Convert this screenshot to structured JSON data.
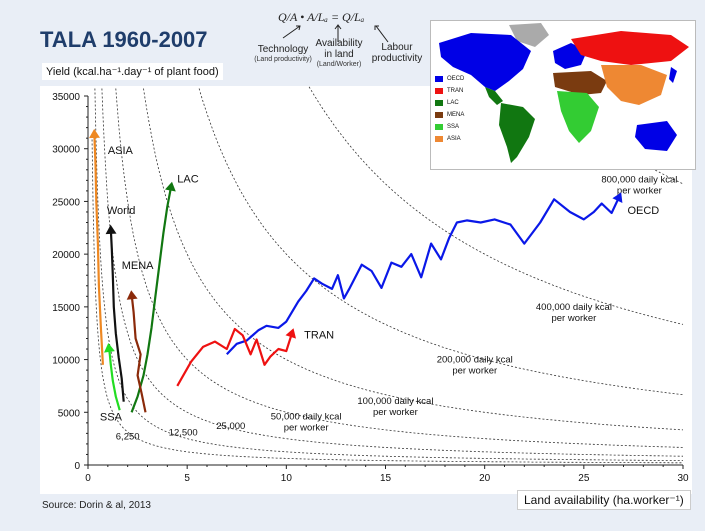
{
  "slide": {
    "title": "TALA 1960-2007",
    "source": "Source: Dorin & al, 2013",
    "formula": {
      "main": "Q/A • A/Lₐ = Q/Lₐ",
      "labels": [
        "Technology",
        "Availability",
        "Labour"
      ],
      "labels2": [
        "",
        "in land",
        "productivity"
      ],
      "sub": [
        "(Land productivity)",
        "(Land/Worker)",
        ""
      ]
    },
    "map_legend": [
      "OECD",
      "TRAN",
      "LAC",
      "MENA",
      "SSA",
      "ASIA"
    ],
    "map_colors": [
      "#0000e6",
      "#ee1111",
      "#117711",
      "#7a3b10",
      "#33cc33",
      "#ee8833"
    ]
  },
  "chart_data": {
    "type": "line",
    "xlabel": "Land availability (ha.worker⁻¹)",
    "ylabel": "Yield  (kcal.ha⁻¹.day⁻¹ of plant food)",
    "xlim": [
      0,
      30
    ],
    "ylim": [
      0,
      35000
    ],
    "xticks": [
      0,
      5,
      10,
      15,
      20,
      25,
      30
    ],
    "yticks": [
      0,
      5000,
      10000,
      15000,
      20000,
      25000,
      30000,
      35000
    ],
    "grid": false,
    "iso_curves": [
      {
        "k": 6250,
        "label": "6,250"
      },
      {
        "k": 12500,
        "label": "12,500"
      },
      {
        "k": 25000,
        "label": "25,000"
      },
      {
        "k": 50000,
        "label": "50,000 daily kcal\nper worker"
      },
      {
        "k": 100000,
        "label": "100,000 daily kcal\nper worker"
      },
      {
        "k": 200000,
        "label": "200,000 daily kcal\nper worker"
      },
      {
        "k": 400000,
        "label": "400,000 daily kcal\nper worker"
      },
      {
        "k": 800000,
        "label": "800,000 daily kcal\nper worker"
      }
    ],
    "series": [
      {
        "name": "OECD",
        "color": "#0a18e8",
        "x": [
          7.0,
          7.5,
          8.0,
          8.6,
          9.0,
          9.6,
          10.0,
          10.6,
          11.0,
          11.4,
          11.8,
          12.3,
          12.6,
          12.9,
          13.2,
          13.8,
          14.3,
          14.8,
          15.3,
          15.8,
          16.3,
          16.8,
          17.3,
          17.8,
          18.2,
          18.6,
          19.1,
          19.8,
          20.5,
          21.3,
          22.0,
          22.8,
          23.5,
          24.3,
          25.0,
          25.5,
          25.9,
          26.4,
          26.8
        ],
        "y": [
          10500,
          11500,
          11800,
          12800,
          13200,
          13000,
          13600,
          15500,
          16500,
          17700,
          17200,
          16700,
          18000,
          15800,
          16800,
          19000,
          18400,
          16800,
          19200,
          18800,
          20000,
          17800,
          21000,
          19500,
          21500,
          23000,
          23200,
          23000,
          23300,
          22800,
          21000,
          23000,
          25200,
          24000,
          23300,
          24000,
          24800,
          23900,
          25500
        ]
      },
      {
        "name": "TRAN",
        "color": "#ee1111",
        "x": [
          4.5,
          5.2,
          5.8,
          6.4,
          7.0,
          7.4,
          7.8,
          8.2,
          8.5,
          8.9,
          9.2,
          9.6,
          10.0,
          10.3
        ],
        "y": [
          7500,
          9800,
          11200,
          11700,
          11000,
          12900,
          12300,
          10500,
          11900,
          9500,
          10300,
          11000,
          10800,
          12600
        ]
      },
      {
        "name": "LAC",
        "color": "#117711",
        "x": [
          2.2,
          2.5,
          2.8,
          3.0,
          3.2,
          3.4,
          3.6,
          3.8,
          4.0,
          4.2
        ],
        "y": [
          5000,
          6500,
          8500,
          10500,
          13000,
          16000,
          19000,
          22000,
          24500,
          26500
        ]
      },
      {
        "name": "MENA",
        "color": "#8b2a0a",
        "x": [
          2.9,
          2.7,
          2.5,
          2.65,
          2.4,
          2.3,
          2.2
        ],
        "y": [
          5000,
          6800,
          8500,
          10500,
          12000,
          14500,
          16200
        ]
      },
      {
        "name": "World",
        "color": "#111111",
        "x": [
          1.8,
          1.7,
          1.55,
          1.4,
          1.3,
          1.25,
          1.2,
          1.15
        ],
        "y": [
          6000,
          8200,
          10200,
          12500,
          15000,
          18000,
          20500,
          22400
        ]
      },
      {
        "name": "ASIA",
        "color": "#ee8822",
        "x": [
          0.75,
          0.65,
          0.55,
          0.5,
          0.42,
          0.38,
          0.32
        ],
        "y": [
          9500,
          13000,
          17000,
          21000,
          25000,
          28500,
          31500
        ]
      },
      {
        "name": "SSA",
        "color": "#22dd22",
        "x": [
          1.6,
          1.4,
          1.25,
          1.15,
          1.1,
          1.05
        ],
        "y": [
          5200,
          6500,
          8000,
          9500,
          10500,
          11200
        ]
      }
    ],
    "annotations": [
      "ASIA",
      "World",
      "LAC",
      "MENA",
      "SSA",
      "TRAN",
      "OECD"
    ]
  }
}
